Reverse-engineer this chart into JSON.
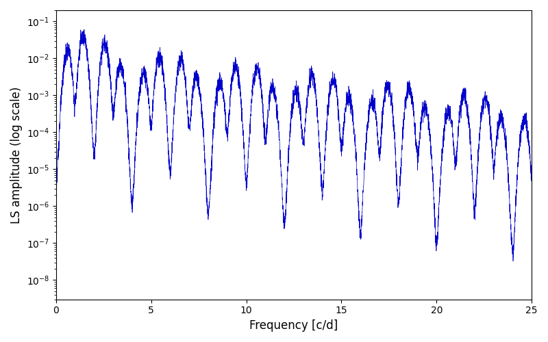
{
  "line_color": "#0000CC",
  "xlabel": "Frequency [c/d]",
  "ylabel": "LS amplitude (log scale)",
  "xlim": [
    0,
    25
  ],
  "ylim": [
    3e-09,
    0.2
  ],
  "xmin": 0,
  "xmax": 25,
  "num_points": 5000,
  "background_color": "#ffffff",
  "line_width": 0.5,
  "figsize": [
    8.0,
    5.0
  ],
  "dpi": 100,
  "yticks": [
    1e-08,
    1e-07,
    1e-06,
    1e-05,
    0.0001,
    0.001,
    0.01,
    0.1
  ],
  "xticks": [
    0,
    5,
    10,
    15,
    20,
    25
  ]
}
